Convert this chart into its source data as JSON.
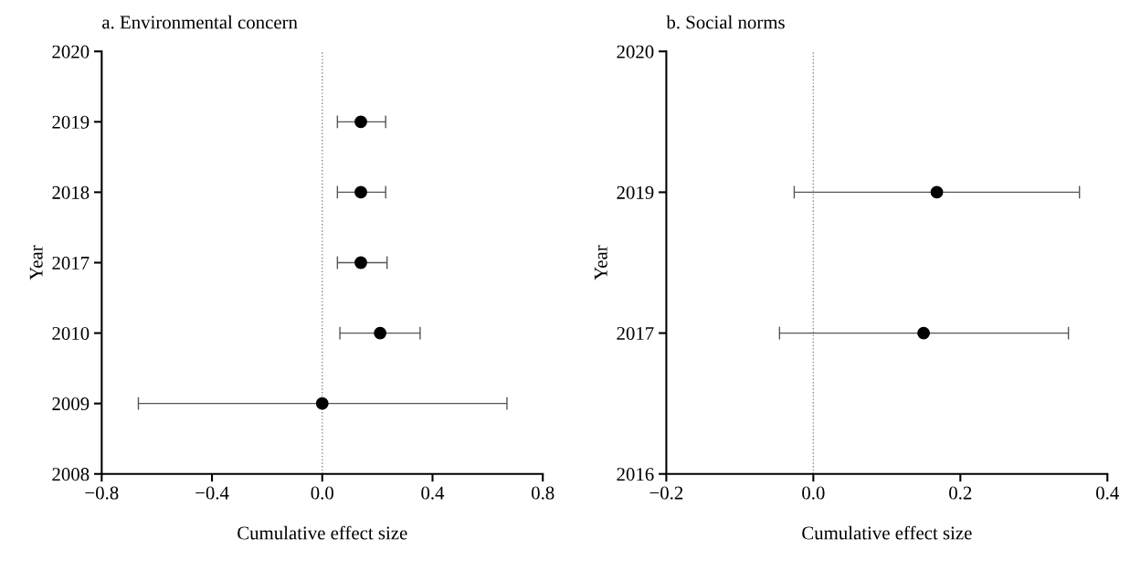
{
  "chart_data": [
    {
      "type": "scatter",
      "orientation": "horizontal",
      "title": "a. Environmental concern",
      "xlabel": "Cumulative effect size",
      "ylabel": "Year",
      "categories": [
        "2020",
        "2019",
        "2018",
        "2017",
        "2010",
        "2009",
        "2008"
      ],
      "series": [
        {
          "color": "#000000",
          "values": [
            null,
            0.14,
            0.14,
            0.14,
            0.21,
            0.0,
            null
          ],
          "errors": [
            null,
            [
              0.055,
              0.23
            ],
            [
              0.055,
              0.23
            ],
            [
              0.055,
              0.235
            ],
            [
              0.064,
              0.355
            ],
            [
              -0.667,
              0.67
            ],
            null
          ]
        }
      ],
      "xlim": [
        -0.8,
        0.8
      ],
      "xticks": [
        {
          "value": -0.8,
          "label": "−0.8"
        },
        {
          "value": -0.4,
          "label": "−0.4"
        },
        {
          "value": 0.0,
          "label": "0.0"
        },
        {
          "value": 0.4,
          "label": "0.4"
        },
        {
          "value": 0.8,
          "label": "0.8"
        }
      ],
      "ref_lines": [
        {
          "axis": "x",
          "value": 0,
          "color": "#888888",
          "line_style": "dotted"
        }
      ],
      "marker": "circle",
      "grid": false,
      "legend": false
    },
    {
      "type": "scatter",
      "orientation": "horizontal",
      "title": "b. Social norms",
      "xlabel": "Cumulative effect size",
      "ylabel": "Year",
      "categories": [
        "2020",
        "2019",
        "2017",
        "2016"
      ],
      "series": [
        {
          "color": "#000000",
          "values": [
            null,
            0.168,
            0.15,
            null
          ],
          "errors": [
            null,
            [
              -0.026,
              0.362
            ],
            [
              -0.046,
              0.347
            ],
            null
          ]
        }
      ],
      "xlim": [
        -0.2,
        0.4
      ],
      "xticks": [
        {
          "value": -0.2,
          "label": "−0.2"
        },
        {
          "value": 0.0,
          "label": "0.0"
        },
        {
          "value": 0.2,
          "label": "0.2"
        },
        {
          "value": 0.4,
          "label": "0.4"
        }
      ],
      "ref_lines": [
        {
          "axis": "x",
          "value": 0,
          "color": "#888888",
          "line_style": "dotted"
        }
      ],
      "marker": "circle",
      "grid": false,
      "legend": false
    }
  ]
}
